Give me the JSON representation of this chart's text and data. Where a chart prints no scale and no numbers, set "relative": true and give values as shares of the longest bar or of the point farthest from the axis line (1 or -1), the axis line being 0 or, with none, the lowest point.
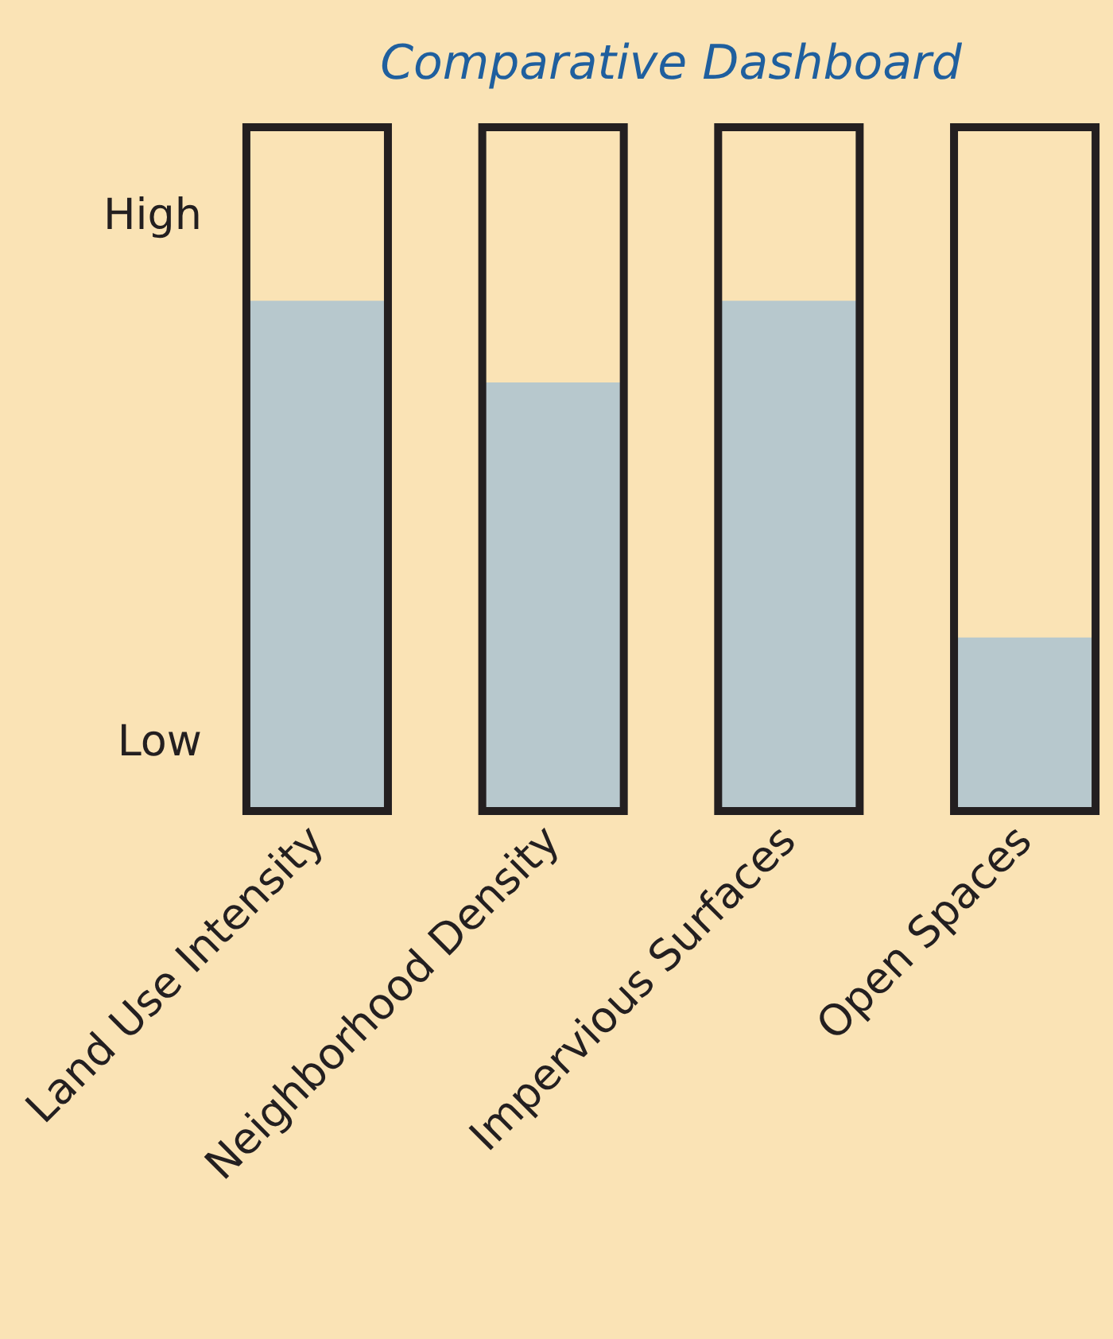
{
  "chart_data": {
    "type": "bar",
    "title": "Comparative Dashboard",
    "categories": [
      "Land Use Intensity",
      "Neighborhood Density",
      "Impervious Surfaces",
      "Open Spaces"
    ],
    "values": [
      1,
      0.84,
      1,
      0.34
    ],
    "color": "#b7c8cd",
    "relative": true,
    "annotations": [
      "High",
      "Low"
    ]
  }
}
